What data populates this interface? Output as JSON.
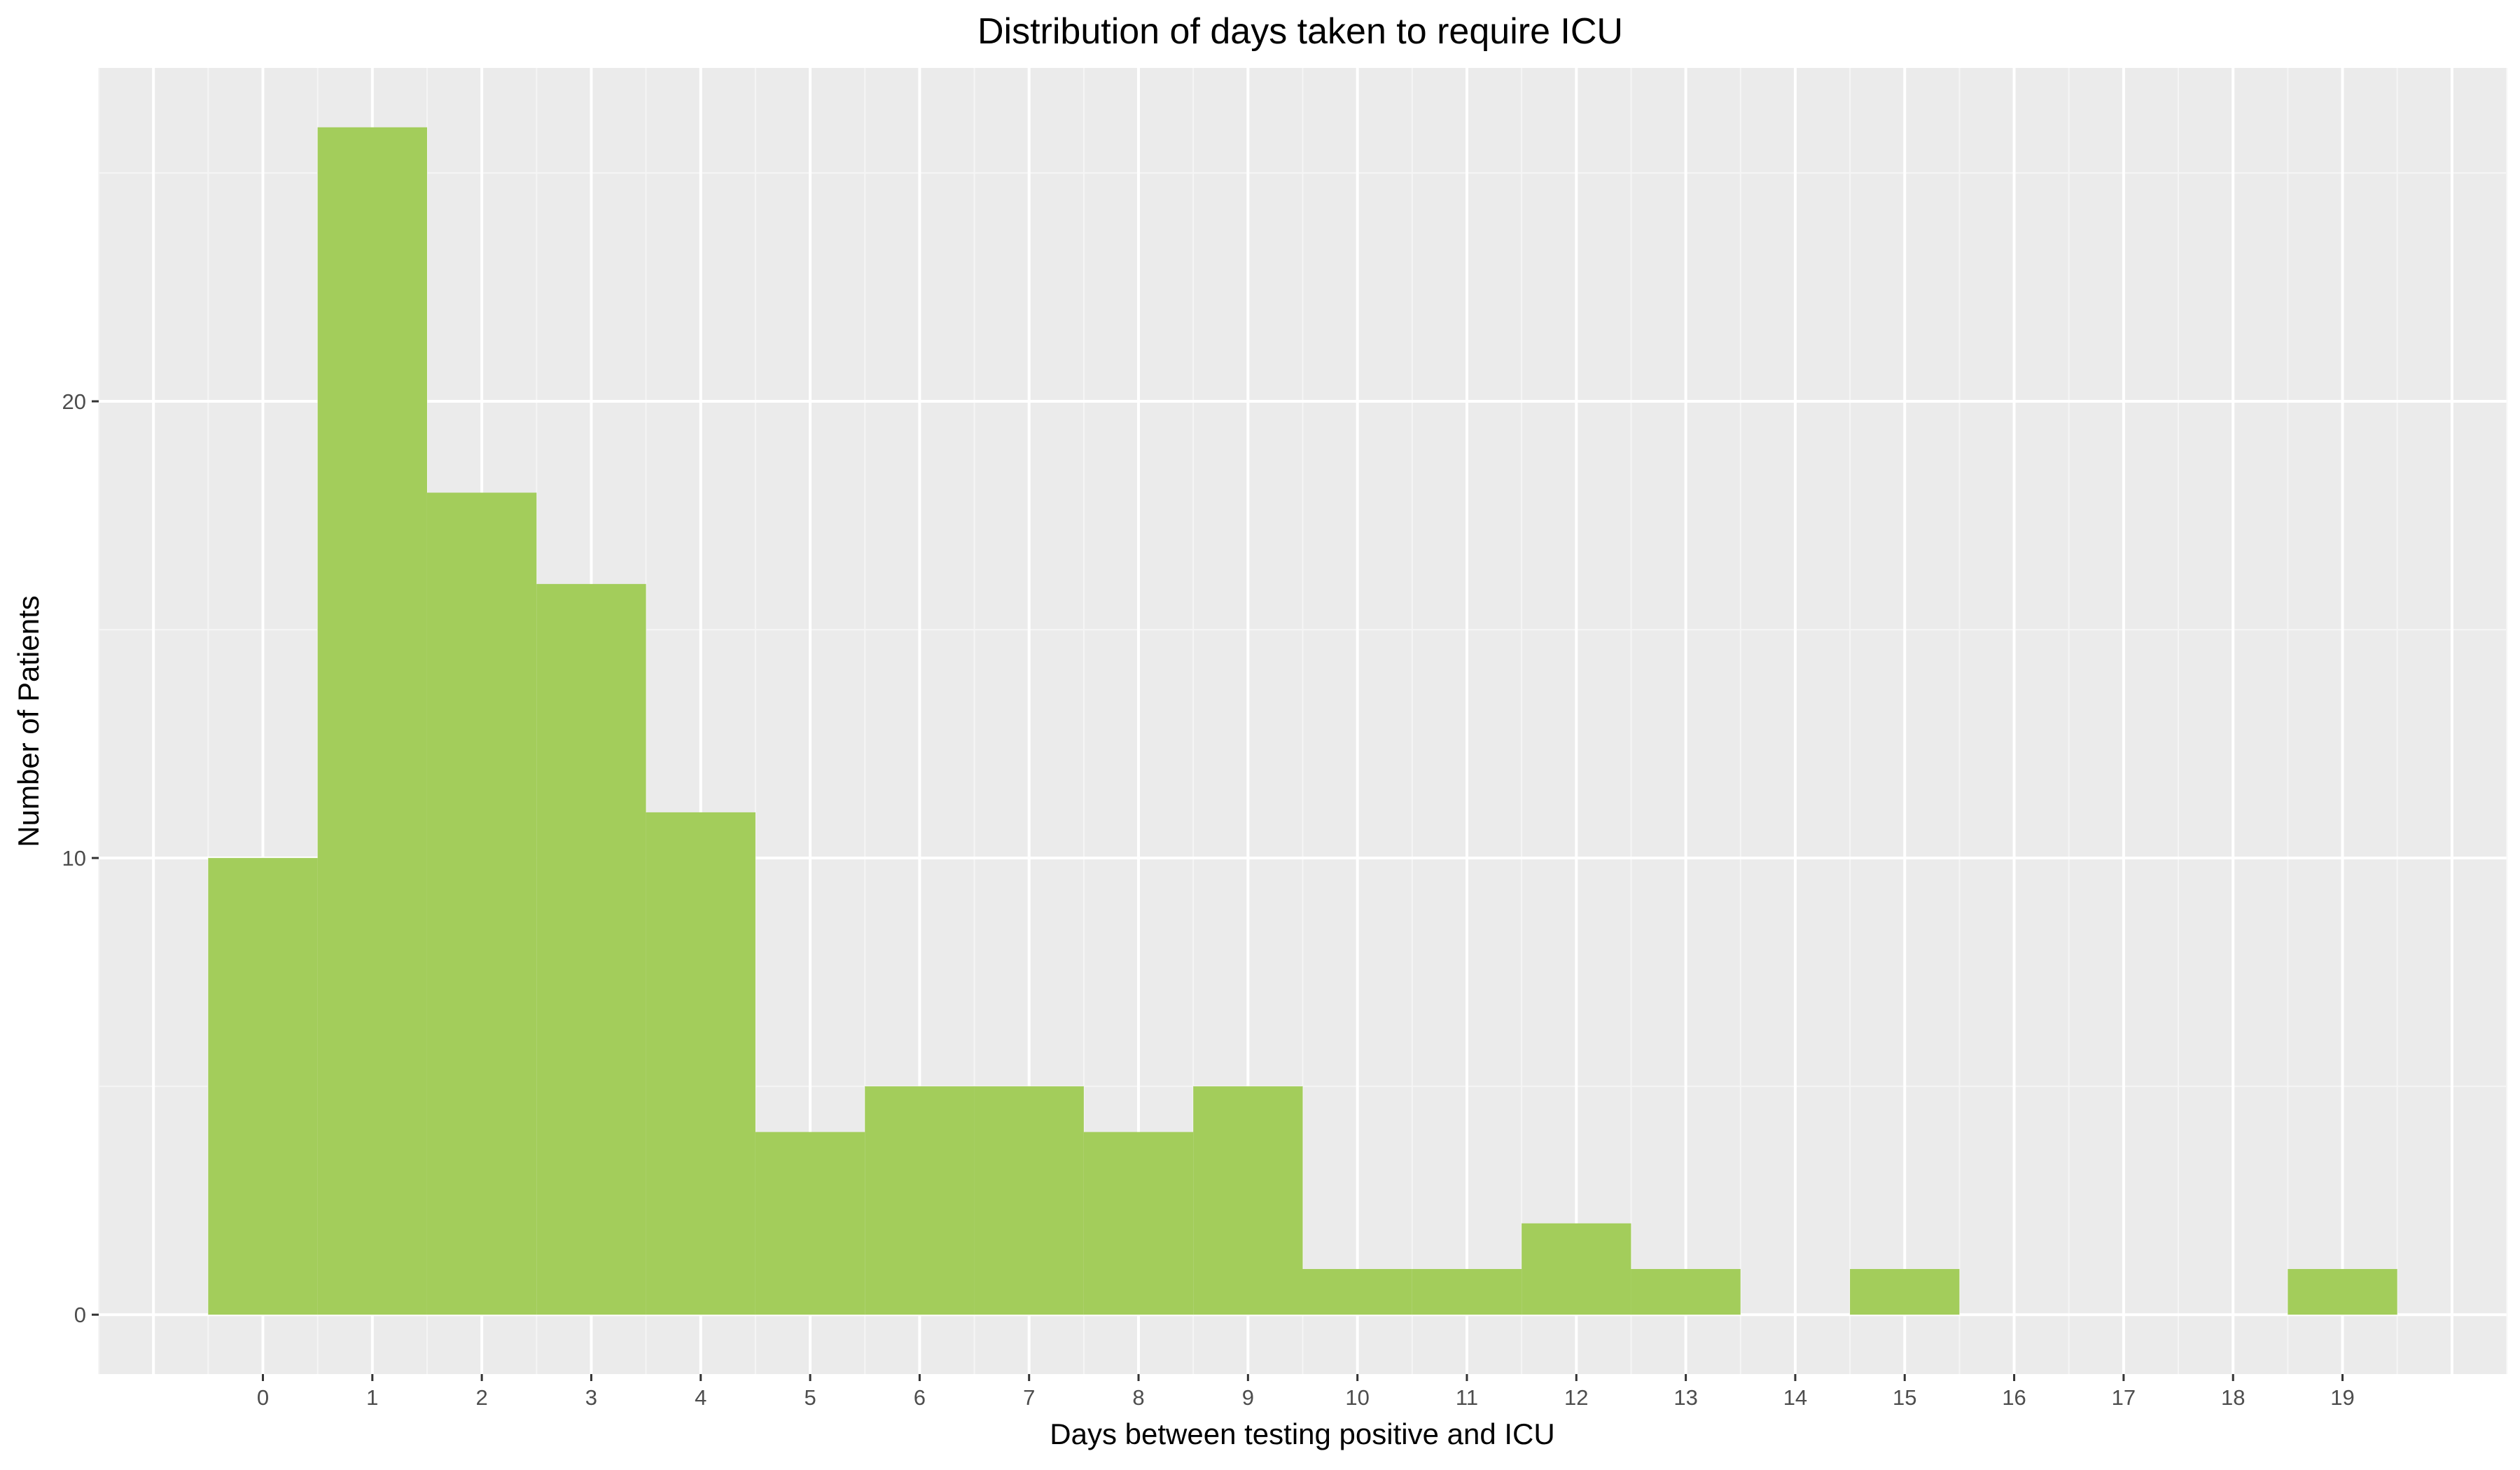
{
  "chart_data": {
    "type": "bar",
    "title": "Distribution of days taken to require ICU",
    "xlabel": "Days between testing positive and ICU",
    "ylabel": "Number of Patients",
    "categories": [
      "0",
      "1",
      "2",
      "3",
      "4",
      "5",
      "6",
      "7",
      "8",
      "9",
      "10",
      "11",
      "12",
      "13",
      "14",
      "15",
      "16",
      "17",
      "18",
      "19"
    ],
    "x": [
      0,
      1,
      2,
      3,
      4,
      5,
      6,
      7,
      8,
      9,
      10,
      11,
      12,
      13,
      14,
      15,
      16,
      17,
      18,
      19
    ],
    "values": [
      10,
      26,
      18,
      16,
      11,
      4,
      5,
      5,
      4,
      5,
      1,
      1,
      2,
      1,
      0,
      1,
      0,
      0,
      0,
      1
    ],
    "yticks": [
      0,
      10,
      20
    ],
    "ytick_labels": [
      "0",
      "10",
      "20"
    ],
    "xlim": [
      -1.5,
      20.5
    ],
    "ylim": [
      -1.3,
      27.3
    ],
    "grid": true,
    "legend": "none",
    "colors": {
      "bar": "#a3cd5b",
      "panel": "#ebebeb",
      "grid_major": "#ffffff",
      "grid_minor": "#f5f5f5",
      "tick_text": "#4d4d4d",
      "tick_mark": "#333333",
      "text": "#000000"
    }
  }
}
